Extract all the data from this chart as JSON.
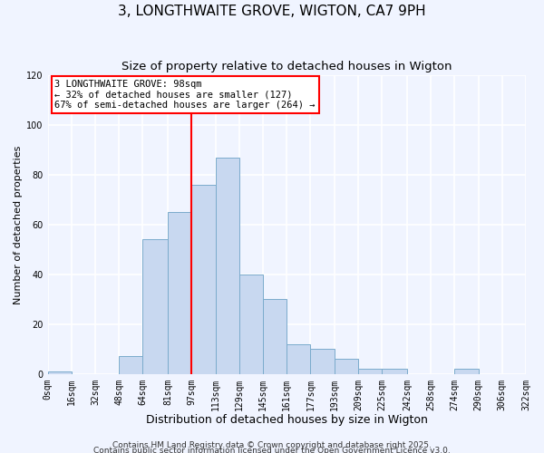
{
  "title": "3, LONGTHWAITE GROVE, WIGTON, CA7 9PH",
  "subtitle": "Size of property relative to detached houses in Wigton",
  "xlabel": "Distribution of detached houses by size in Wigton",
  "ylabel": "Number of detached properties",
  "bar_color": "#c8d8f0",
  "bar_edge_color": "#7aabcc",
  "bg_color": "#f0f4ff",
  "grid_color": "#ffffff",
  "vline_x": 97,
  "vline_color": "red",
  "annotation_line1": "3 LONGTHWAITE GROVE: 98sqm",
  "annotation_line2": "← 32% of detached houses are smaller (127)",
  "annotation_line3": "67% of semi-detached houses are larger (264) →",
  "bins": [
    0,
    16,
    32,
    48,
    64,
    81,
    97,
    113,
    129,
    145,
    161,
    177,
    193,
    209,
    225,
    242,
    258,
    274,
    290,
    306,
    322
  ],
  "bar_values": [
    1,
    0,
    0,
    7,
    54,
    65,
    76,
    87,
    40,
    30,
    12,
    10,
    6,
    2,
    2,
    0,
    0,
    2,
    0,
    0
  ],
  "ylim": [
    0,
    120
  ],
  "yticks": [
    0,
    20,
    40,
    60,
    80,
    100,
    120
  ],
  "footer1": "Contains HM Land Registry data © Crown copyright and database right 2025.",
  "footer2": "Contains public sector information licensed under the Open Government Licence v3.0.",
  "title_fontsize": 11,
  "subtitle_fontsize": 9.5,
  "xlabel_fontsize": 9,
  "ylabel_fontsize": 8,
  "tick_fontsize": 7,
  "footer_fontsize": 6.5,
  "annot_fontsize": 7.5
}
